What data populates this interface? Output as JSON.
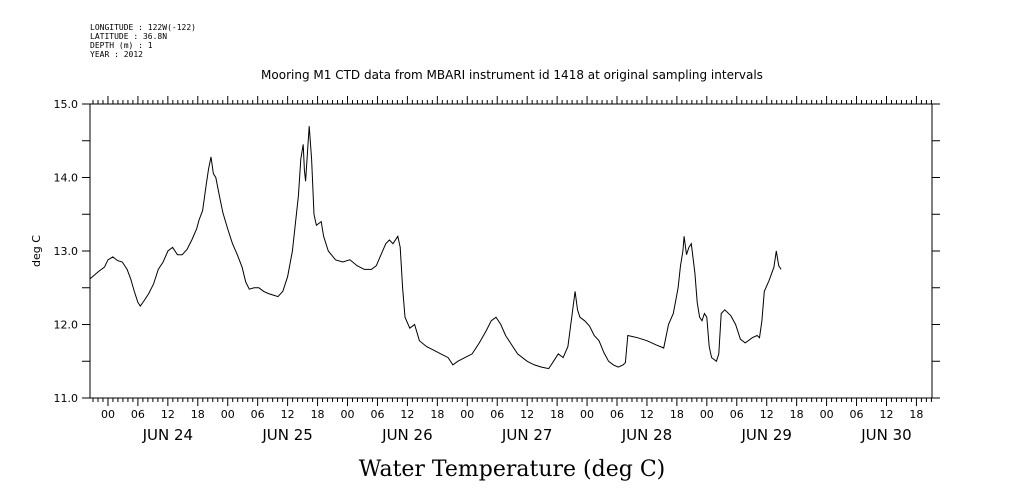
{
  "header": {
    "lines": [
      "LONGITUDE : 122W(-122)",
      "LATITUDE : 36.8N",
      "DEPTH (m) : 1",
      "YEAR : 2012"
    ]
  },
  "chart_data": {
    "type": "line",
    "title": "Mooring M1 CTD data from MBARI instrument id 1418 at original sampling intervals",
    "xlabel": "Water Temperature (deg C)",
    "ylabel": "deg C",
    "xlim": [
      -0.15,
      6.88
    ],
    "ylim": [
      11.0,
      15.0
    ],
    "grid": false,
    "x_units": "days since Jun 24 00:00",
    "y_ticks": [
      "11.0",
      "12.0",
      "13.0",
      "14.0",
      "15.0"
    ],
    "hour_ticks": [
      "00",
      "06",
      "12",
      "18",
      "00",
      "06",
      "12",
      "18",
      "00",
      "06",
      "12",
      "18",
      "00",
      "06",
      "12",
      "18",
      "00",
      "06",
      "12",
      "18",
      "00",
      "06",
      "12",
      "18",
      "00",
      "06",
      "12",
      "18"
    ],
    "day_labels": [
      "JUN 24",
      "JUN 25",
      "JUN 26",
      "JUN 27",
      "JUN 28",
      "JUN 29",
      "JUN 30"
    ],
    "series": [
      {
        "color": "#000000",
        "points": [
          [
            -0.15,
            12.62
          ],
          [
            -0.08,
            12.72
          ],
          [
            -0.03,
            12.78
          ],
          [
            0.0,
            12.88
          ],
          [
            0.04,
            12.92
          ],
          [
            0.08,
            12.87
          ],
          [
            0.12,
            12.85
          ],
          [
            0.16,
            12.75
          ],
          [
            0.19,
            12.62
          ],
          [
            0.22,
            12.45
          ],
          [
            0.25,
            12.3
          ],
          [
            0.27,
            12.25
          ],
          [
            0.3,
            12.32
          ],
          [
            0.34,
            12.42
          ],
          [
            0.38,
            12.55
          ],
          [
            0.42,
            12.75
          ],
          [
            0.46,
            12.85
          ],
          [
            0.5,
            13.0
          ],
          [
            0.54,
            13.05
          ],
          [
            0.58,
            12.95
          ],
          [
            0.62,
            12.95
          ],
          [
            0.66,
            13.02
          ],
          [
            0.7,
            13.15
          ],
          [
            0.74,
            13.3
          ],
          [
            0.76,
            13.42
          ],
          [
            0.79,
            13.55
          ],
          [
            0.82,
            13.9
          ],
          [
            0.84,
            14.12
          ],
          [
            0.86,
            14.28
          ],
          [
            0.88,
            14.05
          ],
          [
            0.9,
            14.0
          ],
          [
            0.93,
            13.75
          ],
          [
            0.96,
            13.52
          ],
          [
            1.0,
            13.3
          ],
          [
            1.04,
            13.1
          ],
          [
            1.08,
            12.95
          ],
          [
            1.12,
            12.78
          ],
          [
            1.15,
            12.58
          ],
          [
            1.18,
            12.48
          ],
          [
            1.22,
            12.5
          ],
          [
            1.26,
            12.5
          ],
          [
            1.3,
            12.45
          ],
          [
            1.34,
            12.42
          ],
          [
            1.38,
            12.4
          ],
          [
            1.42,
            12.38
          ],
          [
            1.46,
            12.45
          ],
          [
            1.5,
            12.65
          ],
          [
            1.54,
            13.0
          ],
          [
            1.57,
            13.45
          ],
          [
            1.59,
            13.75
          ],
          [
            1.61,
            14.25
          ],
          [
            1.63,
            14.45
          ],
          [
            1.64,
            14.1
          ],
          [
            1.65,
            13.95
          ],
          [
            1.67,
            14.45
          ],
          [
            1.68,
            14.7
          ],
          [
            1.7,
            14.25
          ],
          [
            1.72,
            13.5
          ],
          [
            1.74,
            13.35
          ],
          [
            1.78,
            13.4
          ],
          [
            1.8,
            13.2
          ],
          [
            1.84,
            13.0
          ],
          [
            1.9,
            12.88
          ],
          [
            1.96,
            12.85
          ],
          [
            2.02,
            12.88
          ],
          [
            2.08,
            12.8
          ],
          [
            2.14,
            12.75
          ],
          [
            2.2,
            12.75
          ],
          [
            2.24,
            12.8
          ],
          [
            2.28,
            12.95
          ],
          [
            2.32,
            13.1
          ],
          [
            2.35,
            13.15
          ],
          [
            2.38,
            13.1
          ],
          [
            2.42,
            13.2
          ],
          [
            2.44,
            13.05
          ],
          [
            2.46,
            12.5
          ],
          [
            2.48,
            12.1
          ],
          [
            2.52,
            11.95
          ],
          [
            2.56,
            12.0
          ],
          [
            2.6,
            11.78
          ],
          [
            2.66,
            11.7
          ],
          [
            2.72,
            11.65
          ],
          [
            2.78,
            11.6
          ],
          [
            2.84,
            11.55
          ],
          [
            2.88,
            11.45
          ],
          [
            2.92,
            11.5
          ],
          [
            2.98,
            11.55
          ],
          [
            3.04,
            11.6
          ],
          [
            3.1,
            11.75
          ],
          [
            3.16,
            11.92
          ],
          [
            3.2,
            12.05
          ],
          [
            3.24,
            12.1
          ],
          [
            3.28,
            12.0
          ],
          [
            3.32,
            11.85
          ],
          [
            3.36,
            11.75
          ],
          [
            3.42,
            11.6
          ],
          [
            3.5,
            11.5
          ],
          [
            3.56,
            11.45
          ],
          [
            3.62,
            11.42
          ],
          [
            3.68,
            11.4
          ],
          [
            3.72,
            11.5
          ],
          [
            3.76,
            11.6
          ],
          [
            3.8,
            11.55
          ],
          [
            3.84,
            11.7
          ],
          [
            3.86,
            11.95
          ],
          [
            3.88,
            12.2
          ],
          [
            3.9,
            12.45
          ],
          [
            3.92,
            12.2
          ],
          [
            3.94,
            12.1
          ],
          [
            3.98,
            12.05
          ],
          [
            4.02,
            11.98
          ],
          [
            4.06,
            11.85
          ],
          [
            4.1,
            11.78
          ],
          [
            4.14,
            11.62
          ],
          [
            4.18,
            11.5
          ],
          [
            4.22,
            11.45
          ],
          [
            4.26,
            11.42
          ],
          [
            4.3,
            11.45
          ],
          [
            4.32,
            11.48
          ],
          [
            4.34,
            11.85
          ],
          [
            4.42,
            11.82
          ],
          [
            4.5,
            11.78
          ],
          [
            4.58,
            11.72
          ],
          [
            4.64,
            11.68
          ],
          [
            4.68,
            12.0
          ],
          [
            4.72,
            12.15
          ],
          [
            4.76,
            12.5
          ],
          [
            4.78,
            12.8
          ],
          [
            4.8,
            13.0
          ],
          [
            4.81,
            13.2
          ],
          [
            4.83,
            12.95
          ],
          [
            4.85,
            13.05
          ],
          [
            4.87,
            13.1
          ],
          [
            4.9,
            12.7
          ],
          [
            4.92,
            12.3
          ],
          [
            4.94,
            12.1
          ],
          [
            4.96,
            12.05
          ],
          [
            4.98,
            12.15
          ],
          [
            5.0,
            12.1
          ],
          [
            5.02,
            11.7
          ],
          [
            5.04,
            11.55
          ],
          [
            5.08,
            11.5
          ],
          [
            5.1,
            11.6
          ],
          [
            5.12,
            12.15
          ],
          [
            5.15,
            12.2
          ],
          [
            5.2,
            12.12
          ],
          [
            5.24,
            12.0
          ],
          [
            5.28,
            11.8
          ],
          [
            5.32,
            11.75
          ],
          [
            5.38,
            11.82
          ],
          [
            5.42,
            11.85
          ],
          [
            5.44,
            11.82
          ],
          [
            5.46,
            12.05
          ],
          [
            5.48,
            12.45
          ],
          [
            5.52,
            12.6
          ],
          [
            5.56,
            12.78
          ],
          [
            5.58,
            13.0
          ],
          [
            5.6,
            12.8
          ],
          [
            5.62,
            12.75
          ]
        ]
      }
    ]
  }
}
